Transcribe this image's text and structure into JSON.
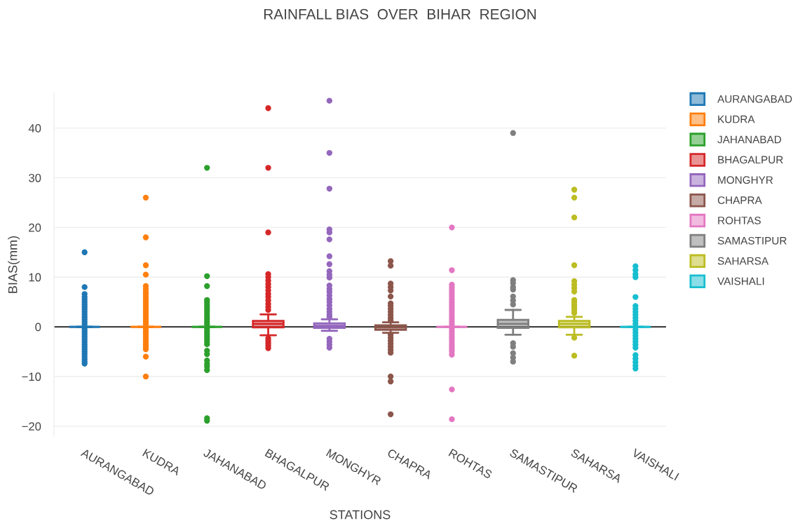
{
  "chart_data": {
    "type": "box",
    "title": "RAINFALL BIAS  OVER  BIHAR  REGION",
    "xlabel": "STATIONS",
    "ylabel": "BIAS(mm)",
    "categories": [
      "AURANGABAD",
      "KUDRA",
      "JAHANABAD",
      "BHAGALPUR",
      "MONGHYR",
      "CHAPRA",
      "ROHTAS",
      "SAMASTIPUR",
      "SAHARSA",
      "VAISHALI"
    ],
    "series": [
      {
        "name": "AURANGABAD",
        "color": "#1f77b4",
        "boxes": [
          {
            "low": 0,
            "q1": 0,
            "median": 0,
            "q3": 0,
            "high": 0,
            "outliers": [
              15,
              8,
              6.6,
              6,
              5.5,
              5,
              4.5,
              4,
              3.5,
              3,
              2.5,
              2,
              1.5,
              1,
              0.5,
              -0.5,
              -1,
              -1.5,
              -2,
              -2.5,
              -3,
              -3.5,
              -4,
              -4.5,
              -5,
              -5.5,
              -6,
              -6.5,
              -7,
              -7.4
            ]
          },
          null,
          null,
          null,
          null,
          null,
          null,
          null,
          null,
          null
        ]
      },
      {
        "name": "KUDRA",
        "color": "#ff7f0e",
        "boxes": [
          null,
          {
            "low": 0,
            "q1": 0,
            "median": 0,
            "q3": 0,
            "high": 0,
            "outliers": [
              26,
              18,
              12.4,
              10.5,
              8.2,
              7.6,
              7,
              6.5,
              6,
              5.5,
              5,
              4.5,
              4,
              3.5,
              3,
              2.5,
              2,
              1.5,
              1,
              0.5,
              -0.5,
              -1,
              -1.5,
              -2,
              -2.5,
              -3,
              -3.5,
              -4,
              -4.5,
              -6,
              -10
            ]
          },
          null,
          null,
          null,
          null,
          null,
          null,
          null,
          null
        ]
      },
      {
        "name": "JAHANABAD",
        "color": "#2ca02c",
        "boxes": [
          null,
          null,
          {
            "low": 0,
            "q1": 0,
            "median": 0,
            "q3": 0,
            "high": 0,
            "outliers": [
              32,
              10.2,
              8.2,
              5.4,
              5,
              4.5,
              4,
              3.5,
              3,
              2.5,
              2,
              1.5,
              1,
              0.5,
              -0.5,
              -1,
              -1.5,
              -2,
              -2.5,
              -3,
              -3.5,
              -4.8,
              -5.5,
              -6.8,
              -7.5,
              -8,
              -8.7,
              -18.4,
              -18.9
            ]
          },
          null,
          null,
          null,
          null,
          null,
          null,
          null
        ]
      },
      {
        "name": "BHAGALPUR",
        "color": "#d62728",
        "boxes": [
          null,
          null,
          null,
          {
            "low": -1.7,
            "q1": -0.1,
            "median": 0.6,
            "q3": 1.2,
            "high": 2.5,
            "outliers": [
              44,
              32,
              19,
              10.6,
              10,
              9.3,
              8.6,
              8,
              7.3,
              6.6,
              6,
              5.3,
              4.6,
              4,
              3.4,
              -2.3,
              -2.8,
              -3.3,
              -3.8,
              -4.3
            ]
          },
          null,
          null,
          null,
          null,
          null,
          null
        ]
      },
      {
        "name": "MONGHYR",
        "color": "#9467bd",
        "boxes": [
          null,
          null,
          null,
          null,
          {
            "low": -0.8,
            "q1": -0.2,
            "median": 0.2,
            "q3": 0.7,
            "high": 1.5,
            "outliers": [
              45.5,
              35,
              27.8,
              19.6,
              19,
              17.6,
              14.2,
              12.6,
              11.2,
              10.5,
              9.9,
              8.3,
              7.6,
              7,
              6.3,
              5.6,
              5,
              4.3,
              3.6,
              3,
              2.4,
              2,
              -2.4,
              -3,
              -3.6,
              -4.2
            ]
          },
          null,
          null,
          null,
          null,
          null
        ]
      },
      {
        "name": "CHAPRA",
        "color": "#8c564b",
        "boxes": [
          null,
          null,
          null,
          null,
          null,
          {
            "low": -1.2,
            "q1": -0.6,
            "median": -0.1,
            "q3": 0.3,
            "high": 0.9,
            "outliers": [
              13.2,
              12.3,
              8.7,
              8,
              7.3,
              6.1,
              4.7,
              4.2,
              3.6,
              3,
              2.4,
              1.8,
              1.3,
              -1.6,
              -2.2,
              -2.8,
              -3.4,
              -4,
              -4.6,
              -5.2,
              -10,
              -11,
              -17.6
            ]
          },
          null,
          null,
          null,
          null
        ]
      },
      {
        "name": "ROHTAS",
        "color": "#e377c2",
        "boxes": [
          null,
          null,
          null,
          null,
          null,
          null,
          {
            "low": 0,
            "q1": 0,
            "median": 0,
            "q3": 0,
            "high": 0,
            "outliers": [
              20,
              11.4,
              8.5,
              8,
              7.5,
              7,
              6.5,
              6,
              5.5,
              5,
              4.5,
              4,
              3.5,
              3,
              2.5,
              2,
              1.5,
              1,
              0.5,
              -0.5,
              -1,
              -1.5,
              -2,
              -2.5,
              -3,
              -3.5,
              -4,
              -4.5,
              -5,
              -5.6,
              -12.6,
              -18.6
            ]
          },
          null,
          null,
          null
        ]
      },
      {
        "name": "SAMASTIPUR",
        "color": "#7f7f7f",
        "boxes": [
          null,
          null,
          null,
          null,
          null,
          null,
          null,
          {
            "low": -1.6,
            "q1": -0.2,
            "median": 0.6,
            "q3": 1.4,
            "high": 3.4,
            "outliers": [
              39,
              9.4,
              8.8,
              8,
              7.5,
              6.1,
              5.3,
              4.5,
              -3.3,
              -4,
              -5.3,
              -6.2,
              -7
            ]
          },
          null,
          null
        ]
      },
      {
        "name": "SAHARSA",
        "color": "#bcbd22",
        "boxes": [
          null,
          null,
          null,
          null,
          null,
          null,
          null,
          null,
          {
            "low": -1.6,
            "q1": -0.1,
            "median": 0.6,
            "q3": 1.2,
            "high": 2,
            "outliers": [
              27.6,
              26,
              22,
              12.4,
              9.2,
              8.5,
              7.8,
              7.1,
              5.4,
              4.9,
              4.4,
              3.9,
              3.4,
              2.8,
              -2.2,
              -5.8
            ]
          },
          null
        ]
      },
      {
        "name": "VAISHALI",
        "color": "#17becf",
        "boxes": [
          null,
          null,
          null,
          null,
          null,
          null,
          null,
          null,
          null,
          {
            "low": 0,
            "q1": 0,
            "median": 0,
            "q3": 0,
            "high": 0,
            "outliers": [
              12.2,
              11.4,
              10.6,
              10,
              6,
              4.2,
              3.6,
              3,
              2.4,
              1.8,
              1.2,
              0.6,
              -0.6,
              -1.2,
              -1.8,
              -2.4,
              -3,
              -3.6,
              -4.2,
              -5.7,
              -6.4,
              -7.1,
              -7.8,
              -8.4
            ]
          }
        ]
      }
    ],
    "ylim": [
      -22,
      47
    ],
    "yticks": [
      {
        "value": -20,
        "label": "−20"
      },
      {
        "value": -10,
        "label": "−10"
      },
      0,
      10,
      20,
      30,
      40
    ],
    "ref_lines": [
      {
        "axis": "y",
        "value": 0,
        "color": "#444444"
      }
    ],
    "grid": "y",
    "legend": "top right",
    "marker": "circle"
  }
}
